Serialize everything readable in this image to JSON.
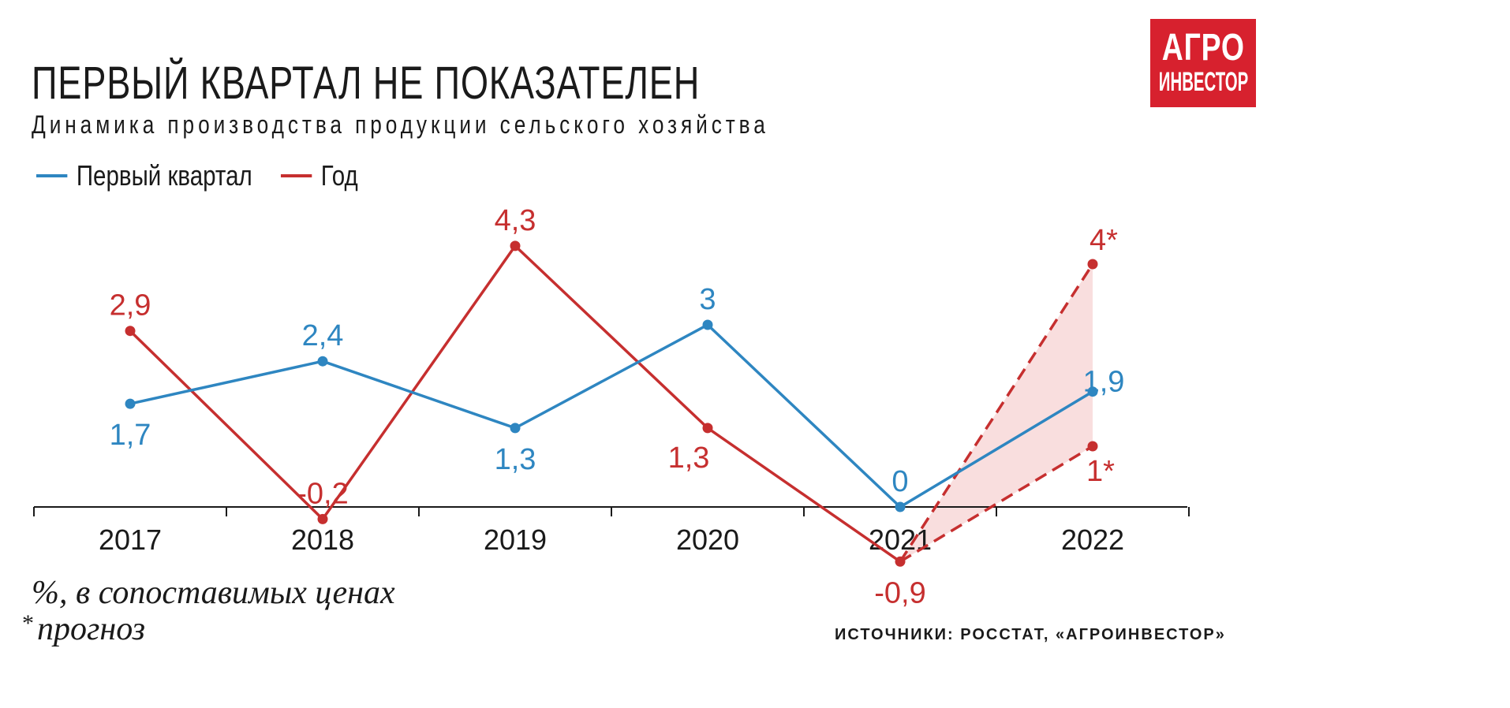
{
  "title": "ПЕРВЫЙ КВАРТАЛ НЕ ПОКАЗАТЕЛЕН",
  "subtitle": "Динамика производства продукции сельского хозяйства",
  "logo": {
    "line1": "АГРО",
    "line2": "ИНВЕСТОР"
  },
  "notes": {
    "units": "%, в сопоставимых ценах",
    "forecast_mark": "*",
    "forecast": "прогноз"
  },
  "sources": "ИСТОЧНИКИ: РОССТАТ, «АГРОИНВЕСТОР»",
  "colors": {
    "q1": "#2e86c1",
    "year": "#c62f2f",
    "band": "#f9dede",
    "axis": "#1a1a1a"
  },
  "chart_data": {
    "type": "line",
    "title": "ПЕРВЫЙ КВАРТАЛ НЕ ПОКАЗАТЕЛЕН",
    "subtitle": "Динамика производства продукции сельского хозяйства",
    "categories": [
      "2017",
      "2018",
      "2019",
      "2020",
      "2021",
      "2022"
    ],
    "ylim": [
      -1,
      4.5
    ],
    "grid": false,
    "legend": "top-left",
    "series": [
      {
        "name": "Первый квартал",
        "color": "#2e86c1",
        "values": [
          1.7,
          2.4,
          1.3,
          3,
          0,
          1.9
        ],
        "labels": [
          "1,7",
          "2,4",
          "1,3",
          "3",
          "0",
          "1,9"
        ],
        "label_pos": [
          "below",
          "above",
          "below",
          "above",
          "above",
          "right"
        ]
      },
      {
        "name": "Год",
        "color": "#c62f2f",
        "values": [
          2.9,
          -0.2,
          4.3,
          1.3,
          -0.9,
          null
        ],
        "labels": [
          "2,9",
          "-0,2",
          "4,3",
          "1,3",
          "-0,9",
          ""
        ],
        "label_pos": [
          "above",
          "above",
          "above",
          "below-left",
          "below",
          ""
        ]
      }
    ],
    "forecast": {
      "category": "2022",
      "from": "2021",
      "high": 4,
      "low": 1,
      "high_label": "4*",
      "low_label": "1*"
    }
  }
}
